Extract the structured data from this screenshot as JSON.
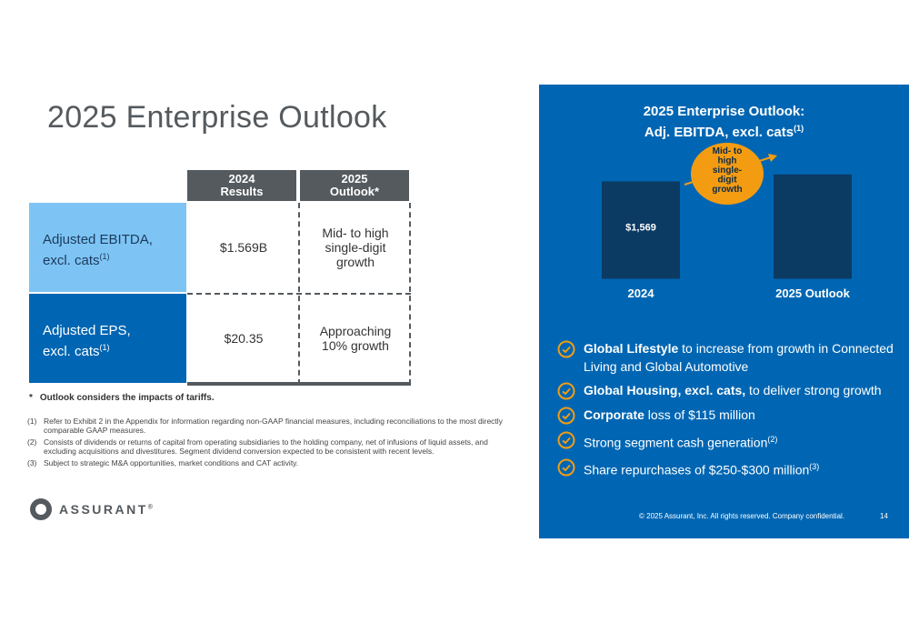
{
  "title": "2025 Enterprise Outlook",
  "table": {
    "headers": [
      "2024\nResults",
      "2025\nOutlook*"
    ],
    "header_lines": [
      [
        "2024",
        "Results"
      ],
      [
        "2025",
        "Outlook*"
      ]
    ],
    "rows": [
      {
        "label": "Adjusted EBITDA,",
        "label2": "excl. cats",
        "sup": "(1)",
        "result": "$1.569B",
        "outlook": [
          "Mid- to high",
          "single-digit",
          "growth"
        ]
      },
      {
        "label": "Adjusted EPS,",
        "label2": "excl. cats",
        "sup": "(1)",
        "result": "$20.35",
        "outlook": [
          "Approaching",
          "10% growth"
        ]
      }
    ]
  },
  "note": {
    "marker": "*",
    "text": "Outlook considers the impacts of tariffs."
  },
  "footnotes": [
    {
      "num": "(1)",
      "text": "Refer to Exhibit 2 in the Appendix for information regarding non-GAAP financial measures, including reconciliations to the most directly comparable GAAP measures."
    },
    {
      "num": "(2)",
      "text": "Consists of dividends or returns of capital from operating subsidiaries to the holding company, net of infusions of liquid assets, and excluding acquisitions and divestitures. Segment dividend conversion expected to be consistent with recent levels."
    },
    {
      "num": "(3)",
      "text": "Subject to strategic M&A opportunities, market conditions and CAT activity."
    }
  ],
  "logo": {
    "text": "ASSURANT",
    "mark": "®"
  },
  "panel": {
    "title_line1": "2025 Enterprise Outlook:",
    "title_line2": "Adj. EBITDA, excl. cats",
    "title_sup": "(1)",
    "bullets": [
      {
        "bold": "Global Lifestyle",
        "text": " to increase from growth in Connected Living and Global Automotive",
        "sup": ""
      },
      {
        "bold": "Global Housing, excl. cats,",
        "text": " to deliver strong growth",
        "sup": ""
      },
      {
        "bold": "Corporate",
        "text": " loss of $115 million",
        "sup": ""
      },
      {
        "bold": "",
        "text": "Strong segment cash generation",
        "sup": "(2)"
      },
      {
        "bold": "",
        "text": "Share repurchases of $250-$300 million",
        "sup": "(3)"
      }
    ],
    "copyright": "© 2025 Assurant, Inc. All rights reserved. Company confidential.",
    "page": "14",
    "colors": {
      "panel": "#0066b3",
      "bar": "#0b3a63",
      "badge": "#f39c12",
      "check": "#f39c12"
    }
  },
  "chart_data": {
    "type": "bar",
    "categories": [
      "2024",
      "2025 Outlook"
    ],
    "values": [
      1569,
      1680
    ],
    "data_labels": [
      "$1,569",
      ""
    ],
    "annotation": [
      "Mid- to",
      "high",
      "single-",
      "digit",
      "growth"
    ],
    "ylim": [
      0,
      1750
    ]
  }
}
